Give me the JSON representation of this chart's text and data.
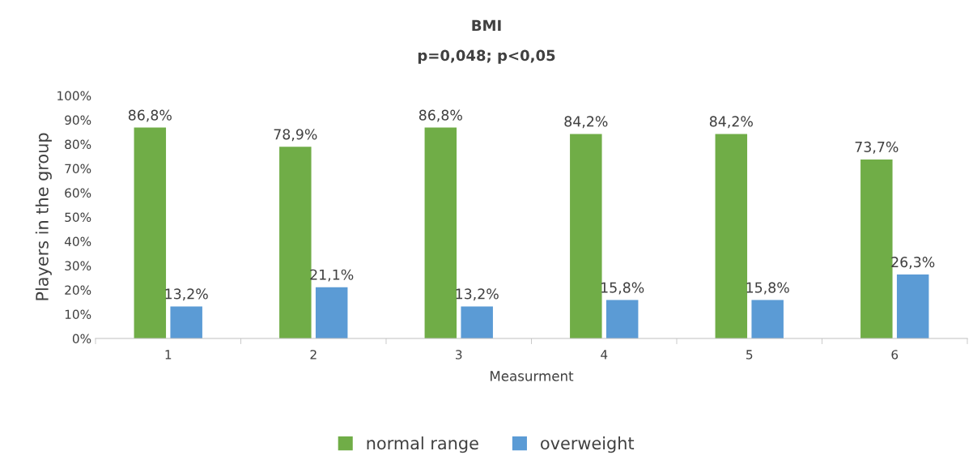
{
  "chart_data": {
    "type": "bar",
    "title": "BMI",
    "subtitle": "p=0,048; p<0,05",
    "xlabel": "Measurment",
    "ylabel": "Players in the group",
    "categories": [
      "1",
      "2",
      "3",
      "4",
      "5",
      "6"
    ],
    "series": [
      {
        "name": "normal range",
        "color": "#70ad47",
        "values": [
          86.8,
          78.9,
          86.8,
          84.2,
          84.2,
          73.7
        ],
        "value_labels": [
          "86,8%",
          "78,9%",
          "86,8%",
          "84,2%",
          "84,2%",
          "73,7%"
        ]
      },
      {
        "name": "overweight",
        "color": "#5b9bd5",
        "values": [
          13.2,
          21.1,
          13.2,
          15.8,
          15.8,
          26.3
        ],
        "value_labels": [
          "13,2%",
          "21,1%",
          "13,2%",
          "15,8%",
          "15,8%",
          "26,3%"
        ]
      }
    ],
    "ylim": [
      0,
      100
    ],
    "yticks": [
      {
        "value": 0,
        "label": "0%"
      },
      {
        "value": 10,
        "label": "10%"
      },
      {
        "value": 20,
        "label": "20%"
      },
      {
        "value": 30,
        "label": "30%"
      },
      {
        "value": 40,
        "label": "40%"
      },
      {
        "value": 50,
        "label": "50%"
      },
      {
        "value": 60,
        "label": "60%"
      },
      {
        "value": 70,
        "label": "70%"
      },
      {
        "value": 80,
        "label": "80%"
      },
      {
        "value": 90,
        "label": "90%"
      },
      {
        "value": 100,
        "label": "100%"
      }
    ],
    "grid": false,
    "legend": "bottom"
  }
}
